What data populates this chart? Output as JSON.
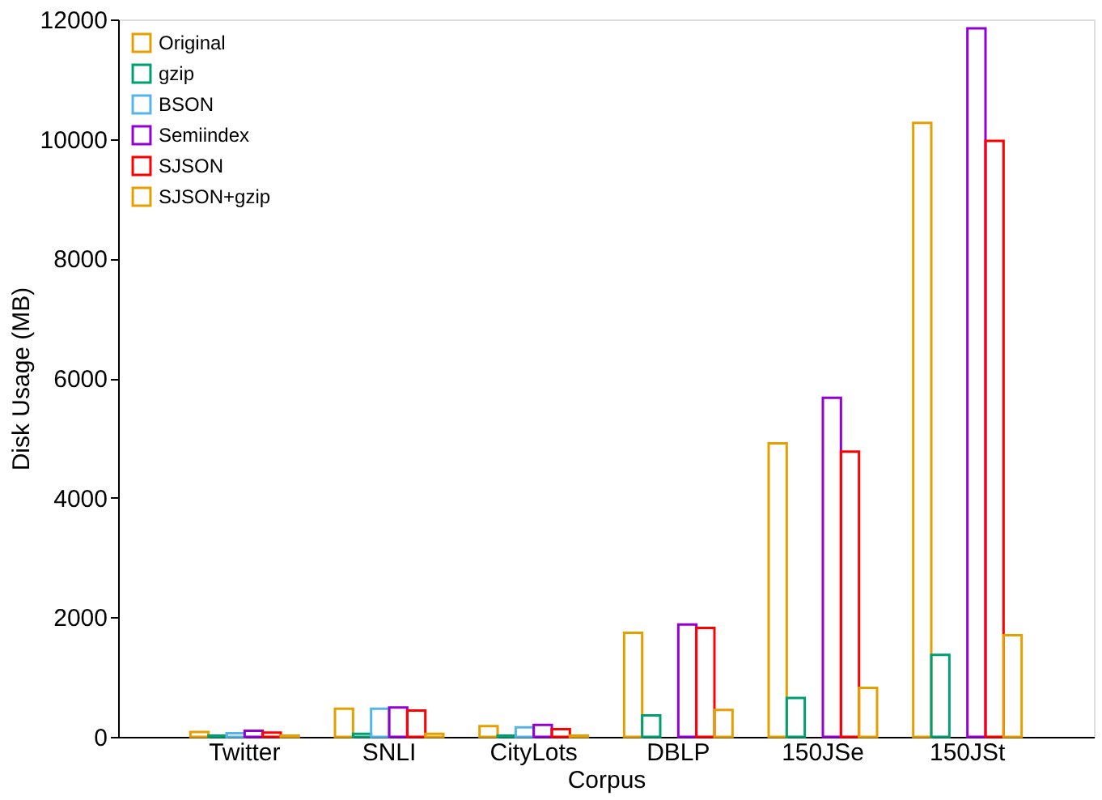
{
  "chart_data": {
    "type": "bar",
    "xlabel": "Corpus",
    "ylabel": "Disk Usage (MB)",
    "categories": [
      "Twitter",
      "SNLI",
      "CityLots",
      "DBLP",
      "150JSe",
      "150JSt"
    ],
    "series": [
      {
        "name": "Original",
        "color": "#e69f00",
        "values": [
          80,
          470,
          180,
          1740,
          4910,
          10270
        ]
      },
      {
        "name": "gzip",
        "color": "#009e73",
        "values": [
          20,
          50,
          20,
          360,
          650,
          1370
        ]
      },
      {
        "name": "BSON",
        "color": "#56b4e9",
        "values": [
          60,
          470,
          160,
          null,
          null,
          null
        ]
      },
      {
        "name": "Semiindex",
        "color": "#9400d3",
        "values": [
          100,
          490,
          200,
          1880,
          5670,
          11850
        ]
      },
      {
        "name": "SJSON",
        "color": "#ff0000",
        "values": [
          70,
          440,
          130,
          1820,
          4770,
          9970
        ]
      },
      {
        "name": "SJSON+gzip",
        "color": "#e69f00",
        "values": [
          20,
          50,
          20,
          450,
          820,
          1700
        ]
      }
    ],
    "ylim": [
      0,
      12000
    ],
    "yticks": [
      0,
      2000,
      4000,
      6000,
      8000,
      10000,
      12000
    ],
    "grid": false,
    "legend": "top left"
  }
}
